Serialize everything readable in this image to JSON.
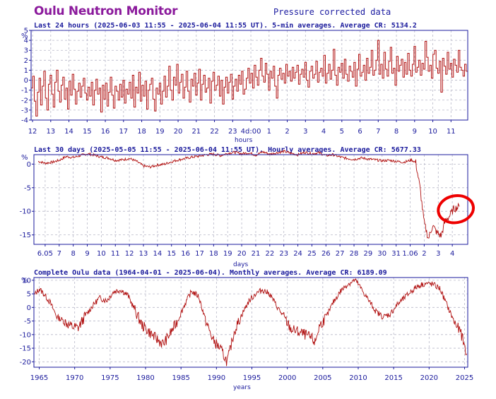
{
  "header": {
    "title": "Oulu Neutron Monitor",
    "subtitle": "Pressure corrected data"
  },
  "colors": {
    "line": "#b01010",
    "frame": "#1a1a9c",
    "grid": "#b8b8c8",
    "title": "#8b1a9c",
    "annotation": "#ee0000"
  },
  "chart_data": [
    {
      "type": "line",
      "title": "Last 24 hours (2025-06-03 11:55 - 2025-06-04 11:55 UT). 5-min averages. Average CR: 5134.2",
      "ylabel": "%",
      "xlabel": "hours",
      "ylim": [
        -4,
        5
      ],
      "yticks": [
        -4,
        -3,
        -2,
        -1,
        0,
        1,
        2,
        3,
        4,
        5
      ],
      "xticks": [
        "12",
        "13",
        "14",
        "15",
        "16",
        "17",
        "18",
        "19",
        "20",
        "21",
        "22",
        "23",
        "4d:00",
        "1",
        "2",
        "3",
        "4",
        "5",
        "6",
        "7",
        "8",
        "9",
        "10",
        "11"
      ],
      "x_range_hours": [
        11.92,
        35.92
      ],
      "grid": true,
      "series": [
        {
          "resolution": "5-min",
          "values": [
            -0.8,
            0.4,
            -2.1,
            -3.6,
            -1.2,
            0.2,
            -2.5,
            -0.6,
            0.9,
            -1.8,
            -3.0,
            -0.4,
            0.5,
            -1.4,
            -2.7,
            -0.2,
            1.0,
            -1.1,
            -2.2,
            -0.5,
            0.3,
            -1.9,
            -0.8,
            -2.9,
            -0.1,
            -1.5,
            0.6,
            -0.9,
            -2.4,
            -1.1,
            -0.3,
            -1.7,
            -0.6,
            0.2,
            -1.3,
            -2.0,
            -0.7,
            -1.6,
            -0.2,
            -2.5,
            -1.0,
            0.1,
            -1.4,
            -0.8,
            -3.2,
            -0.5,
            -1.9,
            -0.3,
            -2.6,
            -1.2,
            0.3,
            -1.5,
            -2.8,
            -0.6,
            -1.1,
            -2.0,
            -0.4,
            -1.7,
            0.0,
            -2.3,
            -0.9,
            -1.4,
            -0.2,
            -1.8,
            0.5,
            -2.7,
            -0.7,
            -1.3,
            0.8,
            -2.1,
            -0.5,
            -1.6,
            -0.1,
            -2.9,
            -1.0,
            -0.4,
            0.2,
            -1.9,
            -3.1,
            -0.8,
            -1.4,
            -0.3,
            -2.4,
            -1.1,
            0.4,
            -1.7,
            -0.6,
            1.4,
            -1.0,
            -2.0,
            0.3,
            -0.5,
            1.6,
            -1.3,
            -0.2,
            0.6,
            -1.8,
            -0.7,
            0.9,
            -1.1,
            -2.2,
            0.1,
            -0.6,
            0.7,
            -1.5,
            -0.3,
            1.1,
            -2.0,
            -0.4,
            0.5,
            -1.2,
            -0.8,
            0.2,
            -2.3,
            -0.1,
            0.8,
            -1.0,
            -0.5,
            0.4,
            -1.6,
            0.0,
            -2.4,
            -0.7,
            0.3,
            -1.3,
            -0.2,
            0.6,
            -1.9,
            -0.6,
            0.1,
            -1.1,
            0.5,
            -0.4,
            0.9,
            -1.4,
            -0.9,
            0.2,
            1.2,
            -0.3,
            0.7,
            -0.8,
            1.5,
            0.3,
            -0.5,
            1.0,
            2.2,
            0.4,
            -0.2,
            1.7,
            0.6,
            -1.0,
            0.9,
            0.2,
            1.4,
            -0.6,
            -1.8,
            0.5,
            1.2,
            0.1,
            0.7,
            -0.3,
            1.6,
            0.4,
            0.9,
            -0.1,
            1.3,
            0.2,
            0.8,
            1.5,
            -0.4,
            0.6,
            1.1,
            0.3,
            1.8,
            0.0,
            -0.7,
            0.9,
            1.4,
            0.2,
            0.6,
            1.9,
            -0.2,
            0.8,
            1.2,
            0.4,
            2.5,
            -0.3,
            0.7,
            1.6,
            0.1,
            1.0,
            3.1,
            0.5,
            -0.5,
            1.3,
            0.8,
            1.7,
            0.2,
            2.1,
            0.6,
            -0.1,
            1.4,
            0.9,
            0.3,
            1.8,
            -0.6,
            1.1,
            2.6,
            0.4,
            0.8,
            1.5,
            0.0,
            2.2,
            0.7,
            1.3,
            3.0,
            0.5,
            1.0,
            2.0,
            4.0,
            0.6,
            1.6,
            0.2,
            2.8,
            1.1,
            0.4,
            1.9,
            3.3,
            0.7,
            1.2,
            -0.5,
            2.4,
            0.9,
            1.5,
            2.1,
            0.3,
            1.8,
            0.6,
            2.7,
            1.0,
            0.4,
            1.6,
            3.4,
            0.8,
            1.3,
            2.0,
            0.5,
            1.7,
            1.1,
            3.9,
            2.3,
            0.9,
            1.5,
            0.2,
            2.6,
            3.0,
            1.2,
            0.7,
            1.9,
            -1.2,
            2.2,
            1.4,
            0.6,
            2.8,
            1.1,
            1.7,
            0.3,
            2.1,
            1.5,
            0.8,
            3.0,
            1.3,
            1.0,
            0.4,
            1.6,
            0.9
          ]
        }
      ]
    },
    {
      "type": "line",
      "title": "Last 30 days (2025-05-05 11:55 - 2025-06-04 11:55 UT). Hourly averages. Average CR: 5677.33",
      "ylabel": "%",
      "xlabel": "days",
      "ylim": [
        -17,
        2
      ],
      "yticks": [
        0,
        -5,
        -10,
        -15
      ],
      "xticks": [
        "6.05",
        "7",
        "8",
        "9",
        "10",
        "11",
        "12",
        "13",
        "14",
        "15",
        "16",
        "17",
        "18",
        "19",
        "20",
        "21",
        "22",
        "23",
        "24",
        "25",
        "26",
        "27",
        "28",
        "29",
        "30",
        "31",
        "1.06",
        "2",
        "3",
        "4"
      ],
      "grid": true,
      "annotation": "hand-drawn red circle around the recovery at 4.06",
      "series": [
        {
          "resolution": "hourly",
          "x_days_from_5may": [
            0,
            0.5,
            1,
            1.5,
            2,
            2.5,
            3,
            3.5,
            4,
            4.5,
            5,
            5.5,
            6,
            6.5,
            7,
            7.5,
            8,
            8.5,
            9,
            9.5,
            10,
            10.5,
            11,
            11.5,
            12,
            12.5,
            13,
            13.5,
            14,
            14.5,
            15,
            15.5,
            16,
            16.5,
            17,
            17.5,
            18,
            18.5,
            19,
            19.5,
            20,
            20.5,
            21,
            21.5,
            22,
            22.5,
            23,
            23.5,
            24,
            24.5,
            25,
            25.5,
            26,
            26.3,
            26.6,
            26.9,
            27.2,
            27.5,
            27.8,
            28.1,
            28.4,
            28.7,
            29,
            29.3,
            29.6,
            30
          ],
          "values": [
            0.6,
            0.2,
            0.4,
            0.8,
            1.6,
            1.4,
            1.8,
            2.2,
            1.9,
            1.5,
            1.3,
            0.8,
            0.9,
            1.2,
            0.6,
            -0.4,
            -0.6,
            -0.2,
            0.0,
            0.5,
            0.9,
            1.2,
            1.5,
            1.7,
            2.0,
            2.1,
            1.8,
            2.3,
            2.5,
            2.2,
            2.4,
            1.9,
            2.6,
            2.1,
            2.4,
            2.7,
            2.3,
            2.0,
            2.5,
            2.2,
            2.4,
            1.8,
            2.0,
            1.5,
            1.2,
            1.0,
            1.3,
            1.1,
            0.9,
            0.7,
            0.8,
            0.6,
            0.4,
            0.6,
            0.9,
            0.3,
            -5.0,
            -12.5,
            -15.8,
            -13.0,
            -14.5,
            -15.2,
            -12.0,
            -11.0,
            -9.5,
            -9.0
          ]
        }
      ]
    },
    {
      "type": "line",
      "title": "Complete Oulu data (1964-04-01 - 2025-06-04). Monthly averages. Average CR: 6189.09",
      "ylabel": "%",
      "xlabel": "years",
      "ylim": [
        -22,
        11
      ],
      "yticks": [
        10,
        5,
        0,
        -5,
        -10,
        -15,
        -20
      ],
      "xticks": [
        "1965",
        "1970",
        "1975",
        "1980",
        "1985",
        "1990",
        "1995",
        "2000",
        "2005",
        "2010",
        "2015",
        "2020",
        "2025"
      ],
      "x_range_years": [
        1964.25,
        2025.45
      ],
      "grid": true,
      "series": [
        {
          "resolution": "monthly",
          "x_years": [
            1964.3,
            1965.0,
            1965.5,
            1966.5,
            1967.5,
            1968.5,
            1969.5,
            1970.5,
            1971.5,
            1972.5,
            1973.5,
            1974.5,
            1975.5,
            1976.5,
            1977.5,
            1978.5,
            1979.5,
            1980.5,
            1981.5,
            1982.5,
            1983.5,
            1984.5,
            1985.5,
            1986.5,
            1987.5,
            1988.5,
            1989.5,
            1990.5,
            1991.5,
            1991.8,
            1992.5,
            1993.5,
            1994.5,
            1995.5,
            1996.5,
            1997.5,
            1998.5,
            1999.5,
            2000.5,
            2001.5,
            2002.5,
            2003.5,
            2003.9,
            2004.5,
            2005.5,
            2006.5,
            2007.5,
            2008.5,
            2009.5,
            2009.9,
            2010.5,
            2011.5,
            2012.5,
            2013.5,
            2014.5,
            2015.5,
            2016.5,
            2017.5,
            2018.5,
            2019.5,
            2020.5,
            2021.5,
            2022.5,
            2023.5,
            2024.5,
            2025.3
          ],
          "values": [
            4.5,
            6.8,
            5.5,
            2.0,
            -3.5,
            -5.0,
            -7.0,
            -7.5,
            -3.0,
            0.5,
            3.5,
            2.5,
            5.8,
            6.5,
            4.5,
            -1.0,
            -6.5,
            -9.0,
            -11.5,
            -13.5,
            -9.5,
            -5.0,
            1.0,
            6.0,
            4.0,
            -5.0,
            -12.0,
            -15.0,
            -20.0,
            -17.0,
            -9.0,
            -3.0,
            2.0,
            5.0,
            6.5,
            5.0,
            0.5,
            -3.5,
            -8.0,
            -9.0,
            -10.0,
            -11.5,
            -13.0,
            -7.0,
            -3.5,
            2.0,
            6.0,
            8.5,
            10.0,
            9.0,
            6.5,
            2.5,
            -1.5,
            -3.5,
            -2.5,
            1.0,
            3.5,
            6.0,
            8.0,
            8.8,
            8.5,
            7.0,
            1.0,
            -5.0,
            -9.5,
            -17.0
          ]
        }
      ]
    }
  ]
}
